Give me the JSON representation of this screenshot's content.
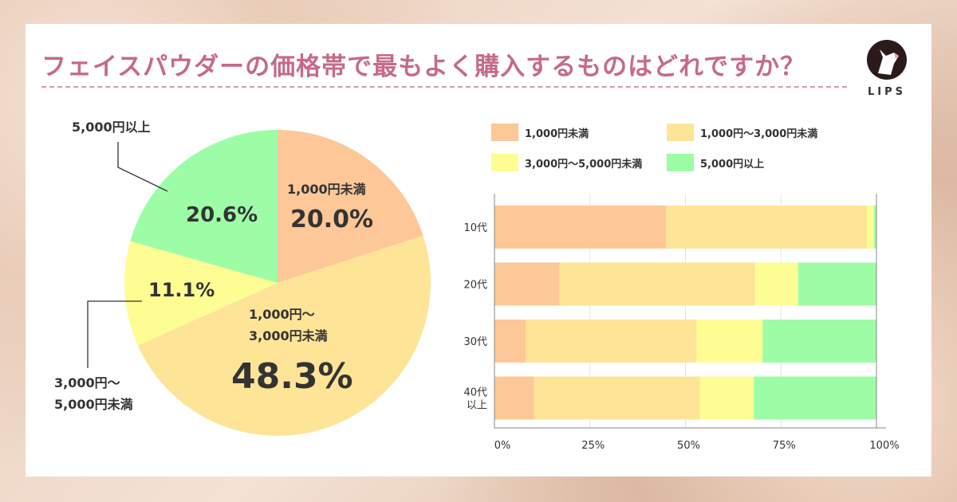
{
  "title": "フェイスパウダーの価格帯で最もよく購入するものはどれですか？",
  "logo": {
    "text": "LIPS"
  },
  "colors": {
    "title": "#c56a8a",
    "under1000": "#fdc797",
    "1000to3000": "#fee497",
    "3000to5000": "#fdfd93",
    "over5000": "#9dfca6"
  },
  "chart_data": [
    {
      "type": "pie",
      "start": "top",
      "direction": "clockwise",
      "slices": [
        {
          "label": "1,000円未満",
          "value": 20.0,
          "value_label": "20.0%"
        },
        {
          "label": "1,000円〜3,000円未満",
          "label_lines": [
            "1,000円〜",
            "3,000円未満"
          ],
          "value": 48.3,
          "value_label": "48.3%"
        },
        {
          "label": "3,000円〜5,000円未満",
          "label_lines": [
            "3,000円〜",
            "5,000円未満"
          ],
          "value": 11.1,
          "value_label": "11.1%"
        },
        {
          "label": "5,000円以上",
          "value": 20.6,
          "value_label": "20.6%"
        }
      ]
    },
    {
      "type": "bar",
      "orientation": "horizontal",
      "stacked": "percent",
      "categories": [
        "10代",
        "20代",
        "30代",
        "40代以上"
      ],
      "category_lines": [
        [
          "10代"
        ],
        [
          "20代"
        ],
        [
          "30代"
        ],
        [
          "40代",
          "以上"
        ]
      ],
      "xlim": [
        0,
        100
      ],
      "xticks": [
        "0%",
        "25%",
        "50%",
        "75%",
        "100%"
      ],
      "grid": true,
      "legend": "top",
      "series": [
        {
          "name": "1,000円未満",
          "values": [
            44.9,
            17.0,
            8.2,
            10.3
          ]
        },
        {
          "name": "1,000円〜3,000円未満",
          "values": [
            52.6,
            51.2,
            44.7,
            43.5
          ]
        },
        {
          "name": "3,000円〜5,000円未満",
          "values": [
            1.8,
            11.3,
            17.3,
            14.1
          ]
        },
        {
          "name": "5,000円以上",
          "values": [
            0.7,
            20.5,
            29.8,
            32.1
          ]
        }
      ]
    }
  ]
}
